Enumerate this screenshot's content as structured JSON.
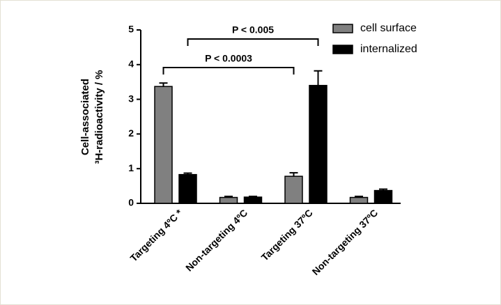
{
  "chart_data": {
    "type": "bar",
    "y_label_lines": [
      "Cell-associated",
      "³H-radioactivity / %"
    ],
    "categories": [
      "Targeting 4ºC *",
      "Non-targeting 4ºC",
      "Targeting 37ºC",
      "Non-targeting 37ºC"
    ],
    "series": [
      {
        "name": "cell surface",
        "color": "#808080",
        "values": [
          3.37,
          0.17,
          0.78,
          0.17
        ],
        "errors": [
          0.1,
          0.03,
          0.1,
          0.03
        ]
      },
      {
        "name": "internalized",
        "color": "#000000",
        "values": [
          0.83,
          0.18,
          3.4,
          0.37
        ],
        "errors": [
          0.04,
          0.02,
          0.42,
          0.04
        ]
      }
    ],
    "ylim": [
      0,
      5
    ],
    "yticks": [
      0,
      1,
      2,
      3,
      4,
      5
    ],
    "grid": false,
    "legend": "upper-right",
    "annotations": [
      "P < 0.005",
      "P < 0.0003"
    ]
  }
}
